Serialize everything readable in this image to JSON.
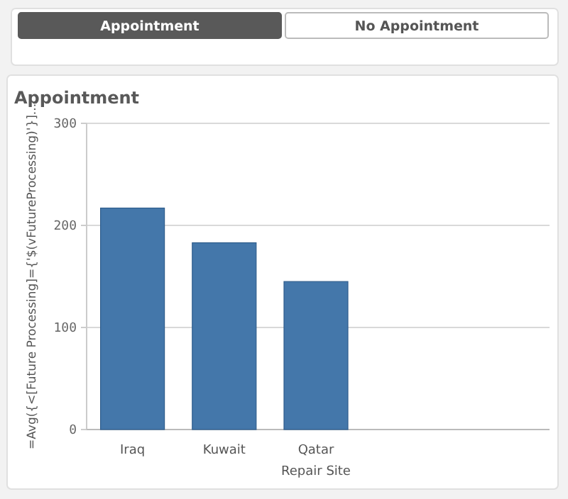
{
  "chart_data": [
    {
      "type": "other",
      "annotations": [
        "Appointment",
        "No Appointment"
      ]
    },
    {
      "type": "bar",
      "title": "Appointment",
      "xlabel": "Repair Site",
      "ylabel": "=Avg({<[Future Processing]={'$(vFutureProcessing)'}]...",
      "categories": [
        "Iraq",
        "Kuwait",
        "Qatar"
      ],
      "values": [
        217,
        183,
        145
      ],
      "color": "#4477aa",
      "ylim": [
        0,
        300
      ],
      "yticks": [
        0,
        100,
        200,
        300
      ],
      "grid": "y"
    }
  ]
}
